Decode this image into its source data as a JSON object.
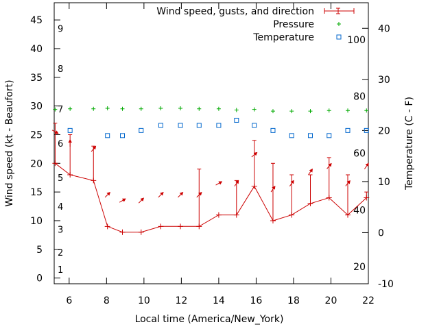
{
  "chart_data": {
    "type": "line",
    "xlabel": "Local time (America/New_York)",
    "ylabel": "Wind speed (kt - Beaufort)",
    "y2label": "Temperature (C - F)",
    "xlim": [
      5.2,
      22
    ],
    "ylim": [
      -1,
      48
    ],
    "y2lim": [
      -10,
      45
    ],
    "x_ticks": [
      "6",
      "8",
      "10",
      "12",
      "14",
      "16",
      "18",
      "20",
      "22"
    ],
    "y_ticks": [
      "0",
      "5",
      "10",
      "15",
      "20",
      "25",
      "30",
      "35",
      "40",
      "45"
    ],
    "y2_ticks": [
      "-10",
      "0",
      "10",
      "20",
      "30",
      "40"
    ],
    "beaufort_labels": [
      "1",
      "2",
      "3",
      "4",
      "5",
      "6",
      "7",
      "8",
      "9"
    ],
    "fahrenheit_labels": [
      "20",
      "40",
      "60",
      "80",
      "100"
    ],
    "legend": {
      "placement": "top-right",
      "entries": [
        "Wind speed, gusts, and direction",
        "Pressure",
        "Temperature"
      ]
    },
    "colors": {
      "wind": "#cc0000",
      "pressure": "#00aa00",
      "temperature": "#0066cc"
    },
    "series": [
      {
        "name": "Wind speed, gusts, and direction",
        "x": [
          5.25,
          6.05,
          7.3,
          8.05,
          8.85,
          9.85,
          10.9,
          11.95,
          12.95,
          14.0,
          14.95,
          15.9,
          16.9,
          17.9,
          18.9,
          19.9,
          20.9,
          21.9
        ],
        "values": [
          20,
          18,
          17,
          9,
          8,
          8,
          9,
          9,
          9,
          11,
          11,
          16,
          10,
          11,
          13,
          14,
          11,
          14
        ],
        "gusts": [
          27,
          25,
          23,
          null,
          null,
          null,
          null,
          null,
          19,
          null,
          17,
          24,
          20,
          18,
          18,
          21,
          18,
          15
        ],
        "direction_deg": [
          300,
          180,
          220,
          225,
          240,
          225,
          225,
          225,
          225,
          240,
          215,
          230,
          215,
          215,
          215,
          220,
          220,
          215
        ]
      },
      {
        "name": "Pressure",
        "x": [
          5.25,
          6.05,
          7.3,
          8.05,
          8.85,
          9.85,
          10.9,
          11.95,
          12.95,
          14.0,
          14.95,
          15.9,
          16.9,
          17.9,
          18.9,
          19.9,
          20.9,
          21.9
        ],
        "values": [
          29.4,
          29.5,
          29.5,
          29.6,
          29.5,
          29.5,
          29.6,
          29.6,
          29.5,
          29.5,
          29.3,
          29.4,
          29.1,
          29.1,
          29.1,
          29.2,
          29.2,
          29.2
        ]
      },
      {
        "name": "Temperature",
        "axis": "y2",
        "x": [
          6.05,
          8.05,
          8.85,
          9.85,
          10.9,
          11.95,
          12.95,
          14.0,
          14.95,
          15.9,
          16.9,
          17.9,
          18.9,
          19.9,
          20.9,
          21.9
        ],
        "values": [
          20,
          19,
          19,
          20,
          21,
          21,
          21,
          21,
          22,
          21,
          20,
          19,
          19,
          19,
          20,
          20
        ]
      }
    ]
  }
}
